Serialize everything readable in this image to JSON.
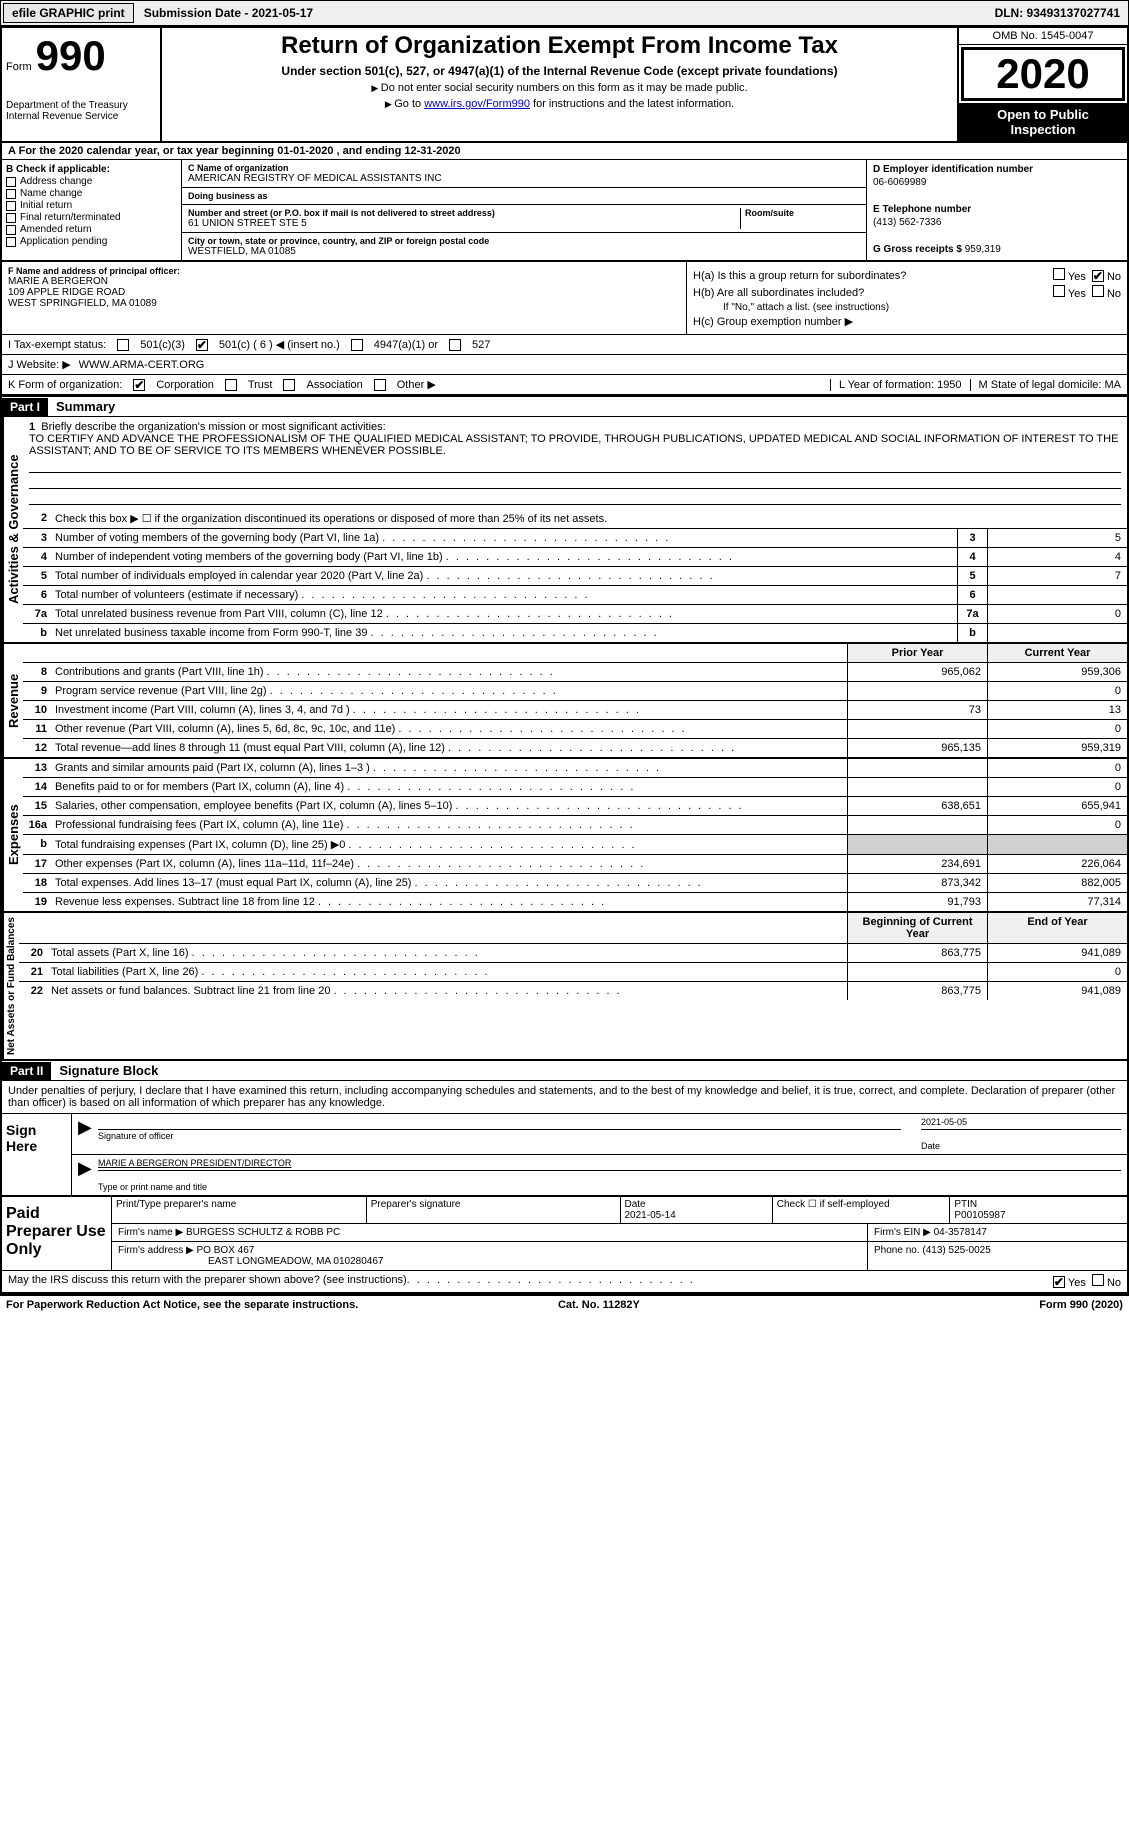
{
  "top": {
    "efile": "efile GRAPHIC print",
    "submission": "Submission Date - 2021-05-17",
    "dln": "DLN: 93493137027741"
  },
  "header": {
    "form_label": "Form",
    "form_no": "990",
    "dept": "Department of the Treasury\nInternal Revenue Service",
    "title": "Return of Organization Exempt From Income Tax",
    "subtitle": "Under section 501(c), 527, or 4947(a)(1) of the Internal Revenue Code (except private foundations)",
    "note1": "Do not enter social security numbers on this form as it may be made public.",
    "note2_pre": "Go to ",
    "note2_link": "www.irs.gov/Form990",
    "note2_post": " for instructions and the latest information.",
    "omb": "OMB No. 1545-0047",
    "year": "2020",
    "open": "Open to Public Inspection"
  },
  "period": "For the 2020 calendar year, or tax year beginning 01-01-2020    , and ending 12-31-2020",
  "boxB": {
    "label": "B Check if applicable:",
    "items": [
      "Address change",
      "Name change",
      "Initial return",
      "Final return/terminated",
      "Amended return",
      "Application pending"
    ]
  },
  "boxC": {
    "name_label": "C Name of organization",
    "name": "AMERICAN REGISTRY OF MEDICAL ASSISTANTS INC",
    "dba_label": "Doing business as",
    "street_label": "Number and street (or P.O. box if mail is not delivered to street address)",
    "room_label": "Room/suite",
    "street": "61 UNION STREET STE 5",
    "city_label": "City or town, state or province, country, and ZIP or foreign postal code",
    "city": "WESTFIELD, MA  01085"
  },
  "boxD": {
    "label": "D Employer identification number",
    "val": "06-6069989"
  },
  "boxE": {
    "label": "E Telephone number",
    "val": "(413) 562-7336"
  },
  "boxG": {
    "label": "G Gross receipts $",
    "val": "959,319"
  },
  "boxF": {
    "label": "F Name and address of principal officer:",
    "name": "MARIE A BERGERON",
    "addr1": "109 APPLE RIDGE ROAD",
    "addr2": "WEST SPRINGFIELD, MA  01089"
  },
  "boxH": {
    "a": "H(a)  Is this a group return for subordinates?",
    "b": "H(b)  Are all subordinates included?",
    "b_note": "If \"No,\" attach a list. (see instructions)",
    "c": "H(c)  Group exemption number ▶"
  },
  "boxI": {
    "label": "I   Tax-exempt status:",
    "opts": [
      "501(c)(3)",
      "501(c) ( 6 ) ◀ (insert no.)",
      "4947(a)(1) or",
      "527"
    ]
  },
  "boxJ": {
    "label": "J   Website: ▶",
    "val": "WWW.ARMA-CERT.ORG"
  },
  "boxK": {
    "label": "K Form of organization:",
    "opts": [
      "Corporation",
      "Trust",
      "Association",
      "Other ▶"
    ],
    "L": "L Year of formation: 1950",
    "M": "M State of legal domicile: MA"
  },
  "part1": {
    "header": "Part I",
    "title": "Summary",
    "q1": "Briefly describe the organization's mission or most significant activities:",
    "mission": "TO CERTIFY AND ADVANCE THE PROFESSIONALISM OF THE QUALIFIED MEDICAL ASSISTANT; TO PROVIDE, THROUGH PUBLICATIONS, UPDATED MEDICAL AND SOCIAL INFORMATION OF INTEREST TO THE ASSISTANT; AND TO BE OF SERVICE TO ITS MEMBERS WHENEVER POSSIBLE.",
    "q2": "Check this box ▶ ☐  if the organization discontinued its operations or disposed of more than 25% of its net assets.",
    "lines_small": [
      {
        "n": "3",
        "d": "Number of voting members of the governing body (Part VI, line 1a)",
        "v": "5"
      },
      {
        "n": "4",
        "d": "Number of independent voting members of the governing body (Part VI, line 1b)",
        "v": "4"
      },
      {
        "n": "5",
        "d": "Total number of individuals employed in calendar year 2020 (Part V, line 2a)",
        "v": "7"
      },
      {
        "n": "6",
        "d": "Total number of volunteers (estimate if necessary)",
        "v": ""
      },
      {
        "n": "7a",
        "d": "Total unrelated business revenue from Part VIII, column (C), line 12",
        "v": "0"
      },
      {
        "n": "b",
        "d": "Net unrelated business taxable income from Form 990-T, line 39",
        "v": ""
      }
    ],
    "col_headers": {
      "prior": "Prior Year",
      "current": "Current Year"
    },
    "revenue": [
      {
        "n": "8",
        "d": "Contributions and grants (Part VIII, line 1h)",
        "p": "965,062",
        "c": "959,306"
      },
      {
        "n": "9",
        "d": "Program service revenue (Part VIII, line 2g)",
        "p": "",
        "c": "0"
      },
      {
        "n": "10",
        "d": "Investment income (Part VIII, column (A), lines 3, 4, and 7d )",
        "p": "73",
        "c": "13"
      },
      {
        "n": "11",
        "d": "Other revenue (Part VIII, column (A), lines 5, 6d, 8c, 9c, 10c, and 11e)",
        "p": "",
        "c": "0"
      },
      {
        "n": "12",
        "d": "Total revenue—add lines 8 through 11 (must equal Part VIII, column (A), line 12)",
        "p": "965,135",
        "c": "959,319"
      }
    ],
    "expenses": [
      {
        "n": "13",
        "d": "Grants and similar amounts paid (Part IX, column (A), lines 1–3 )",
        "p": "",
        "c": "0"
      },
      {
        "n": "14",
        "d": "Benefits paid to or for members (Part IX, column (A), line 4)",
        "p": "",
        "c": "0"
      },
      {
        "n": "15",
        "d": "Salaries, other compensation, employee benefits (Part IX, column (A), lines 5–10)",
        "p": "638,651",
        "c": "655,941"
      },
      {
        "n": "16a",
        "d": "Professional fundraising fees (Part IX, column (A), line 11e)",
        "p": "",
        "c": "0"
      },
      {
        "n": "b",
        "d": "Total fundraising expenses (Part IX, column (D), line 25) ▶0",
        "p": "SHADE",
        "c": "SHADE"
      },
      {
        "n": "17",
        "d": "Other expenses (Part IX, column (A), lines 11a–11d, 11f–24e)",
        "p": "234,691",
        "c": "226,064"
      },
      {
        "n": "18",
        "d": "Total expenses. Add lines 13–17 (must equal Part IX, column (A), line 25)",
        "p": "873,342",
        "c": "882,005"
      },
      {
        "n": "19",
        "d": "Revenue less expenses. Subtract line 18 from line 12",
        "p": "91,793",
        "c": "77,314"
      }
    ],
    "col_headers2": {
      "begin": "Beginning of Current Year",
      "end": "End of Year"
    },
    "netassets": [
      {
        "n": "20",
        "d": "Total assets (Part X, line 16)",
        "p": "863,775",
        "c": "941,089"
      },
      {
        "n": "21",
        "d": "Total liabilities (Part X, line 26)",
        "p": "",
        "c": "0"
      },
      {
        "n": "22",
        "d": "Net assets or fund balances. Subtract line 21 from line 20",
        "p": "863,775",
        "c": "941,089"
      }
    ]
  },
  "part2": {
    "header": "Part II",
    "title": "Signature Block",
    "decl": "Under penalties of perjury, I declare that I have examined this return, including accompanying schedules and statements, and to the best of my knowledge and belief, it is true, correct, and complete. Declaration of preparer (other than officer) is based on all information of which preparer has any knowledge.",
    "sign_here": "Sign Here",
    "sig_date": "2021-05-05",
    "sig_label": "Signature of officer",
    "date_label": "Date",
    "name_title": "MARIE A BERGERON  PRESIDENT/DIRECTOR",
    "name_label": "Type or print name and title",
    "paid": "Paid Preparer Use Only",
    "prep_name_label": "Print/Type preparer's name",
    "prep_sig_label": "Preparer's signature",
    "prep_date_label": "Date",
    "prep_date": "2021-05-14",
    "prep_check": "Check ☐ if self-employed",
    "ptin_label": "PTIN",
    "ptin": "P00105987",
    "firm_name_label": "Firm's name    ▶",
    "firm_name": "BURGESS SCHULTZ & ROBB PC",
    "firm_ein_label": "Firm's EIN ▶",
    "firm_ein": "04-3578147",
    "firm_addr_label": "Firm's address ▶",
    "firm_addr1": "PO BOX 467",
    "firm_addr2": "EAST LONGMEADOW, MA  010280467",
    "phone_label": "Phone no.",
    "phone": "(413) 525-0025",
    "discuss": "May the IRS discuss this return with the preparer shown above? (see instructions)",
    "paperwork": "For Paperwork Reduction Act Notice, see the separate instructions.",
    "cat": "Cat. No. 11282Y",
    "formfoot": "Form 990 (2020)"
  },
  "vert": {
    "gov": "Activities & Governance",
    "rev": "Revenue",
    "exp": "Expenses",
    "net": "Net Assets or Fund Balances"
  }
}
